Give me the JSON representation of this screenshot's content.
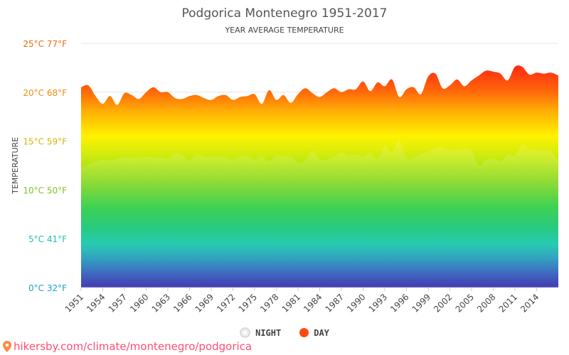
{
  "chart_data": {
    "type": "area",
    "title": "Podgorica Montenegro 1951-2017",
    "subtitle": "YEAR AVERAGE TEMPERATURE",
    "ylabel": "TEMPERATURE",
    "xlabel": "",
    "ylim": [
      0,
      25
    ],
    "xlim": [
      1951,
      2017
    ],
    "y_ticks": [
      {
        "value": 0,
        "label": "0°C 32°F",
        "color": "#17a2c4"
      },
      {
        "value": 5,
        "label": "5°C 41°F",
        "color": "#1fbfb0"
      },
      {
        "value": 10,
        "label": "10°C 50°F",
        "color": "#7ac21f"
      },
      {
        "value": 15,
        "label": "15°C 59°F",
        "color": "#d4b30a"
      },
      {
        "value": 20,
        "label": "20°C 68°F",
        "color": "#f08a10"
      },
      {
        "value": 25,
        "label": "25°C 77°F",
        "color": "#f06a10"
      }
    ],
    "x_ticks": [
      "1951",
      "1954",
      "1957",
      "1960",
      "1963",
      "1966",
      "1969",
      "1972",
      "1975",
      "1978",
      "1981",
      "1984",
      "1987",
      "1990",
      "1993",
      "1996",
      "1999",
      "2002",
      "2005",
      "2008",
      "2011",
      "2014"
    ],
    "grid": true,
    "legend_position": "bottom",
    "x": [
      1951,
      1952,
      1953,
      1954,
      1955,
      1956,
      1957,
      1958,
      1959,
      1960,
      1961,
      1962,
      1963,
      1964,
      1965,
      1966,
      1967,
      1968,
      1969,
      1970,
      1971,
      1972,
      1973,
      1974,
      1975,
      1976,
      1977,
      1978,
      1979,
      1980,
      1981,
      1982,
      1983,
      1984,
      1985,
      1986,
      1987,
      1988,
      1989,
      1990,
      1991,
      1992,
      1993,
      1994,
      1995,
      1996,
      1997,
      1998,
      1999,
      2000,
      2001,
      2002,
      2003,
      2004,
      2005,
      2006,
      2007,
      2008,
      2009,
      2010,
      2011,
      2012,
      2013,
      2014,
      2015,
      2016,
      2017
    ],
    "series": [
      {
        "name": "NIGHT",
        "color": "#e0e0e0",
        "values": [
          12.3,
          12.6,
          12.9,
          13.1,
          13.0,
          13.2,
          13.3,
          13.3,
          13.3,
          13.4,
          13.3,
          13.3,
          13.2,
          13.7,
          13.6,
          13.0,
          13.6,
          13.4,
          13.4,
          13.4,
          13.3,
          13.1,
          13.4,
          13.5,
          13.1,
          13.4,
          12.9,
          13.5,
          13.4,
          13.4,
          12.8,
          13.0,
          14.0,
          13.1,
          13.1,
          13.4,
          13.8,
          13.5,
          13.6,
          13.4,
          13.8,
          13.2,
          14.5,
          13.8,
          15.1,
          13.3,
          13.3,
          13.7,
          13.9,
          14.3,
          14.4,
          14.1,
          14.1,
          14.2,
          14.0,
          12.5,
          13.1,
          13.2,
          12.9,
          13.6,
          13.5,
          14.6,
          14.2,
          14.1,
          14.0,
          13.9,
          13.0
        ]
      },
      {
        "name": "DAY",
        "color": "#ff4a13",
        "values": [
          20.5,
          20.7,
          19.6,
          18.8,
          19.6,
          18.7,
          19.9,
          19.7,
          19.3,
          20.0,
          20.5,
          20.0,
          20.0,
          19.4,
          19.3,
          19.6,
          19.7,
          19.4,
          19.2,
          19.6,
          19.7,
          19.2,
          19.5,
          19.6,
          19.8,
          18.8,
          20.2,
          19.2,
          19.7,
          18.9,
          19.8,
          20.4,
          19.9,
          19.5,
          20.0,
          20.4,
          20.0,
          20.3,
          20.3,
          21.1,
          20.1,
          21.0,
          20.6,
          21.3,
          19.5,
          20.3,
          20.5,
          19.8,
          21.6,
          21.9,
          20.4,
          20.7,
          21.3,
          20.6,
          21.2,
          21.7,
          22.2,
          22.1,
          21.9,
          21.2,
          22.6,
          22.6,
          21.8,
          22.0,
          21.9,
          22.0,
          21.7
        ]
      }
    ]
  },
  "footer": {
    "url_text": "hikersby.com/climate/montenegro/podgorica"
  }
}
